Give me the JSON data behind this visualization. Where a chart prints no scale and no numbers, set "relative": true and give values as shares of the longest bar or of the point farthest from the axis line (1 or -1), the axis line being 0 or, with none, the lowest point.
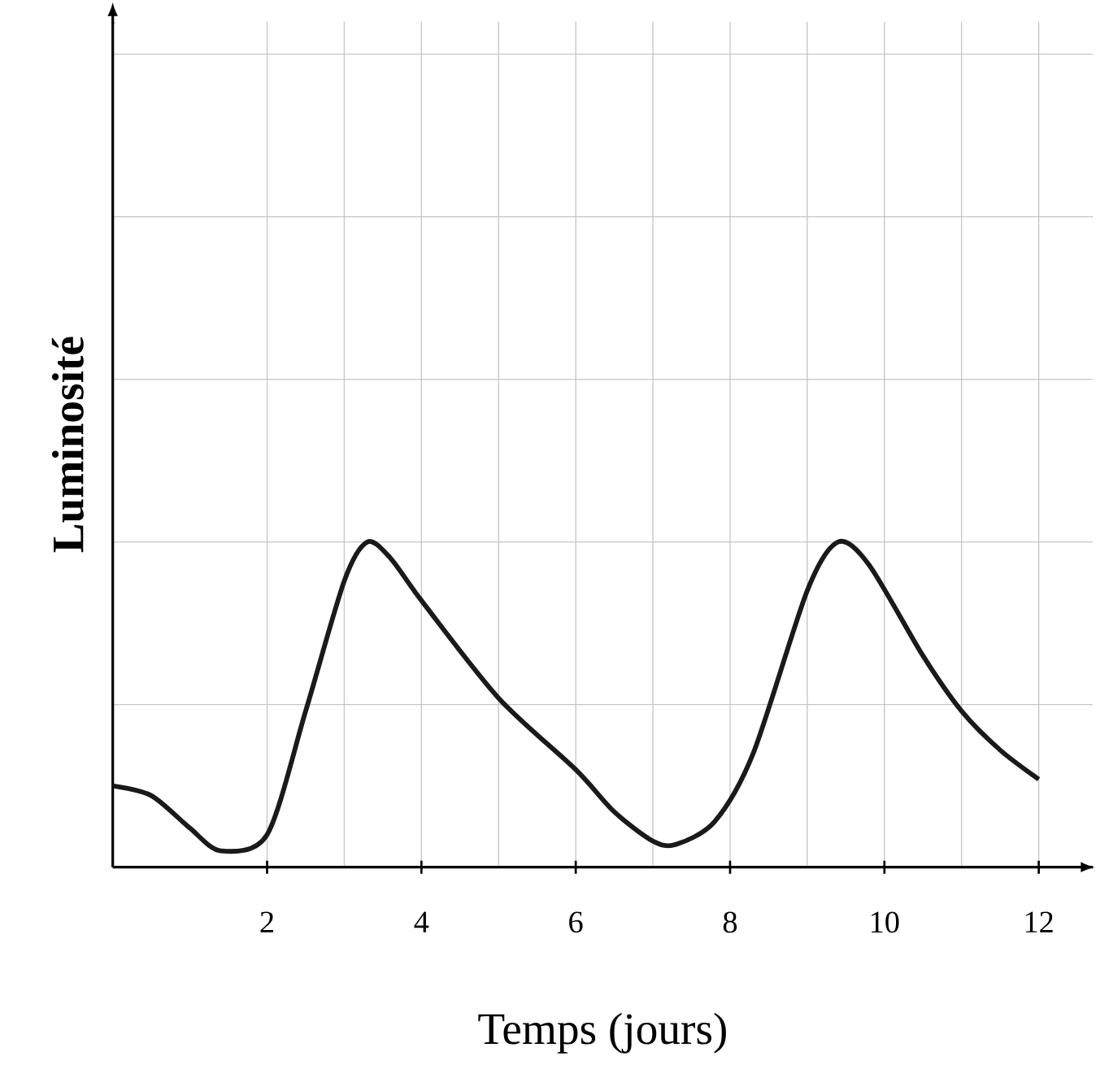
{
  "chart_data": {
    "type": "line",
    "xlabel": "Temps (jours)",
    "ylabel": "Luminosité",
    "relative": true,
    "grid": true,
    "tick_labels": "x",
    "xlim": [
      0,
      12.7
    ],
    "xticks": [
      2,
      4,
      6,
      8,
      10,
      12
    ],
    "x": [
      0,
      0.5,
      1,
      1.4,
      2,
      2.5,
      3,
      3.3,
      3.6,
      4,
      5,
      6,
      6.5,
      7,
      7.3,
      7.8,
      8.3,
      9,
      9.4,
      9.8,
      10.5,
      11,
      11.5,
      12
    ],
    "series": [
      {
        "color": "#1a1a1a",
        "values": [
          0.25,
          0.22,
          0.12,
          0.05,
          0.1,
          0.48,
          0.88,
          1.0,
          0.95,
          0.82,
          0.52,
          0.3,
          0.17,
          0.08,
          0.07,
          0.14,
          0.35,
          0.85,
          1.0,
          0.93,
          0.65,
          0.48,
          0.36,
          0.27
        ]
      }
    ]
  }
}
